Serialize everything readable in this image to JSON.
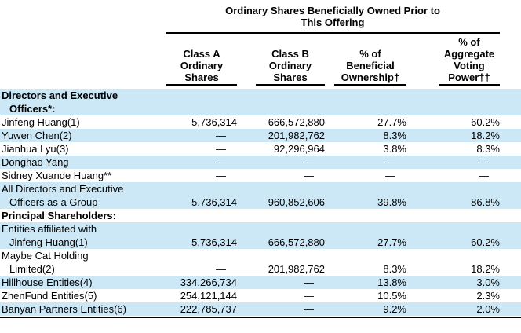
{
  "table": {
    "title_line1": "Ordinary Shares Beneficially Owned Prior to",
    "title_line2": "This Offering",
    "columns": [
      {
        "id": "class-a-ordinary-shares",
        "lines": [
          "Class A",
          "Ordinary",
          "Shares"
        ]
      },
      {
        "id": "class-b-ordinary-shares",
        "lines": [
          "Class B",
          "Ordinary",
          "Shares"
        ]
      },
      {
        "id": "pct-beneficial-ownership",
        "lines": [
          "% of",
          "Beneficial",
          "Ownership†"
        ]
      },
      {
        "id": "pct-aggregate-voting-power",
        "lines": [
          "% of",
          "Aggregate",
          "Voting",
          "Power††"
        ]
      }
    ],
    "dash_char": "—",
    "colors": {
      "stripe": "#cce8f7",
      "text": "#000000",
      "rule": "#000000"
    },
    "rows": [
      {
        "name_lines": [
          "Directors and Executive",
          "Officers*:"
        ],
        "bold": true,
        "shaded": true,
        "values": [
          "",
          "",
          "",
          ""
        ]
      },
      {
        "name_lines": [
          "Jinfeng Huang(1)"
        ],
        "bold": false,
        "shaded": false,
        "values": [
          "5,736,314",
          "666,572,880",
          "27.7%",
          "60.2%"
        ]
      },
      {
        "name_lines": [
          "Yuwen Chen(2)"
        ],
        "bold": false,
        "shaded": true,
        "values": [
          "—",
          "201,982,762",
          "8.3%",
          "18.2%"
        ]
      },
      {
        "name_lines": [
          "Jianhua Lyu(3)"
        ],
        "bold": false,
        "shaded": false,
        "values": [
          "—",
          "92,296,964",
          "3.8%",
          "8.3%"
        ]
      },
      {
        "name_lines": [
          "Donghao Yang"
        ],
        "bold": false,
        "shaded": true,
        "values": [
          "—",
          "—",
          "—",
          "—"
        ]
      },
      {
        "name_lines": [
          "Sidney Xuande Huang**"
        ],
        "bold": false,
        "shaded": false,
        "values": [
          "—",
          "—",
          "—",
          "—"
        ]
      },
      {
        "name_lines": [
          "All Directors and Executive",
          "Officers as a Group"
        ],
        "bold": false,
        "shaded": true,
        "values": [
          "5,736,314",
          "960,852,606",
          "39.8%",
          "86.8%"
        ]
      },
      {
        "name_lines": [
          "Principal Shareholders:"
        ],
        "bold": true,
        "shaded": false,
        "values": [
          "",
          "",
          "",
          ""
        ]
      },
      {
        "name_lines": [
          "Entities affiliated with",
          "Jinfeng Huang(1)"
        ],
        "bold": false,
        "shaded": true,
        "values": [
          "5,736,314",
          "666,572,880",
          "27.7%",
          "60.2%"
        ]
      },
      {
        "name_lines": [
          "Maybe Cat Holding",
          "Limited(2)"
        ],
        "bold": false,
        "shaded": false,
        "values": [
          "—",
          "201,982,762",
          "8.3%",
          "18.2%"
        ]
      },
      {
        "name_lines": [
          "Hillhouse Entities(4)"
        ],
        "bold": false,
        "shaded": true,
        "values": [
          "334,266,734",
          "—",
          "13.8%",
          "3.0%"
        ]
      },
      {
        "name_lines": [
          "ZhenFund Entities(5)"
        ],
        "bold": false,
        "shaded": false,
        "values": [
          "254,121,144",
          "—",
          "10.5%",
          "2.3%"
        ]
      },
      {
        "name_lines": [
          "Banyan Partners Entities(6)"
        ],
        "bold": false,
        "shaded": true,
        "values": [
          "222,785,737",
          "—",
          "9.2%",
          "2.0%"
        ]
      }
    ]
  }
}
